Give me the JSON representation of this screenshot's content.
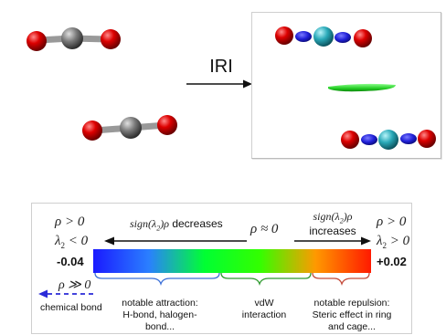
{
  "top": {
    "arrow_label": "IRI"
  },
  "scale": {
    "left_value": "-0.04",
    "right_value": "+0.02",
    "left_rho": "ρ > 0",
    "left_lambda": "λ",
    "left_lambda_sub": "2",
    "left_lambda_rel": "< 0",
    "right_rho": "ρ > 0",
    "right_lambda": "λ",
    "right_lambda_sub": "2",
    "right_lambda_rel": "> 0",
    "mid_rho": "ρ ≈ 0",
    "left_arrow_expr": "sign(λ",
    "left_arrow_expr_sub": "2",
    "left_arrow_expr_tail": ")ρ",
    "left_arrow_text": "decreases",
    "right_arrow_expr": "sign(λ",
    "right_arrow_expr_sub": "2",
    "right_arrow_expr_tail": ")ρ",
    "right_arrow_text": "increases",
    "chem_rho": "ρ ≫ 0",
    "chem_label": "chemical bond",
    "groups": [
      {
        "line1": "notable attraction:",
        "line2": "H-bond, halogen-bond...",
        "line3": ""
      },
      {
        "line1": "vdW",
        "line2": "interaction",
        "line3": ""
      },
      {
        "line1": "notable repulsion:",
        "line2": "Steric effect in ring",
        "line3": "and cage..."
      }
    ],
    "brace_colors": [
      "#3a6fd8",
      "#2e9a2e",
      "#c44a3a"
    ],
    "gradient_colors": [
      "#1a1aff",
      "#2a7fff",
      "#00ff33",
      "#33ff00",
      "#ff9900",
      "#ff1a00"
    ]
  },
  "colors": {
    "oxygen": "#d40000",
    "carbon": "#6e6e6e",
    "isosurface": "#33dd33",
    "cyan_atom": "#29a9b8",
    "blue_atom": "#2a2ad8",
    "frame": "#c8c8c8"
  }
}
